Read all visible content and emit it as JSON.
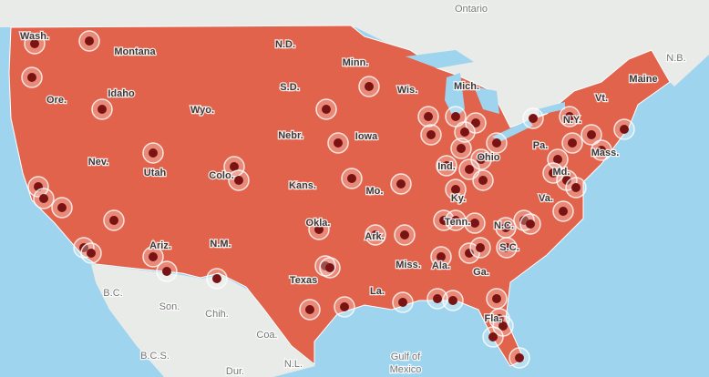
{
  "labels": [
    "Ontario",
    "N.B.",
    "Wash.",
    "Montana",
    "N.D.",
    "Minn.",
    "Ore.",
    "Idaho",
    "Wyo.",
    "S.D.",
    "Wis.",
    "Mich.",
    "Maine",
    "Vt.",
    "N.Y.",
    "Nebr.",
    "Iowa",
    "Pa.",
    "Mass.",
    "Nev.",
    "Utah",
    "Colo.",
    "Kans.",
    "Mo.",
    "Ind.",
    "Ohio",
    "Ky.",
    "Va.",
    "Md.",
    "Okla.",
    "Tenn.",
    "Ark.",
    "N.C.",
    "Ariz.",
    "N.M.",
    "Miss.",
    "Ala.",
    "Ga.",
    "S.C.",
    "Texas",
    "La.",
    "Fla.",
    "B.C.",
    "Son.",
    "Chih.",
    "Coa.",
    "B.C.S.",
    "Dur.",
    "N.L.",
    "Gulf of",
    "Mexico"
  ]
}
